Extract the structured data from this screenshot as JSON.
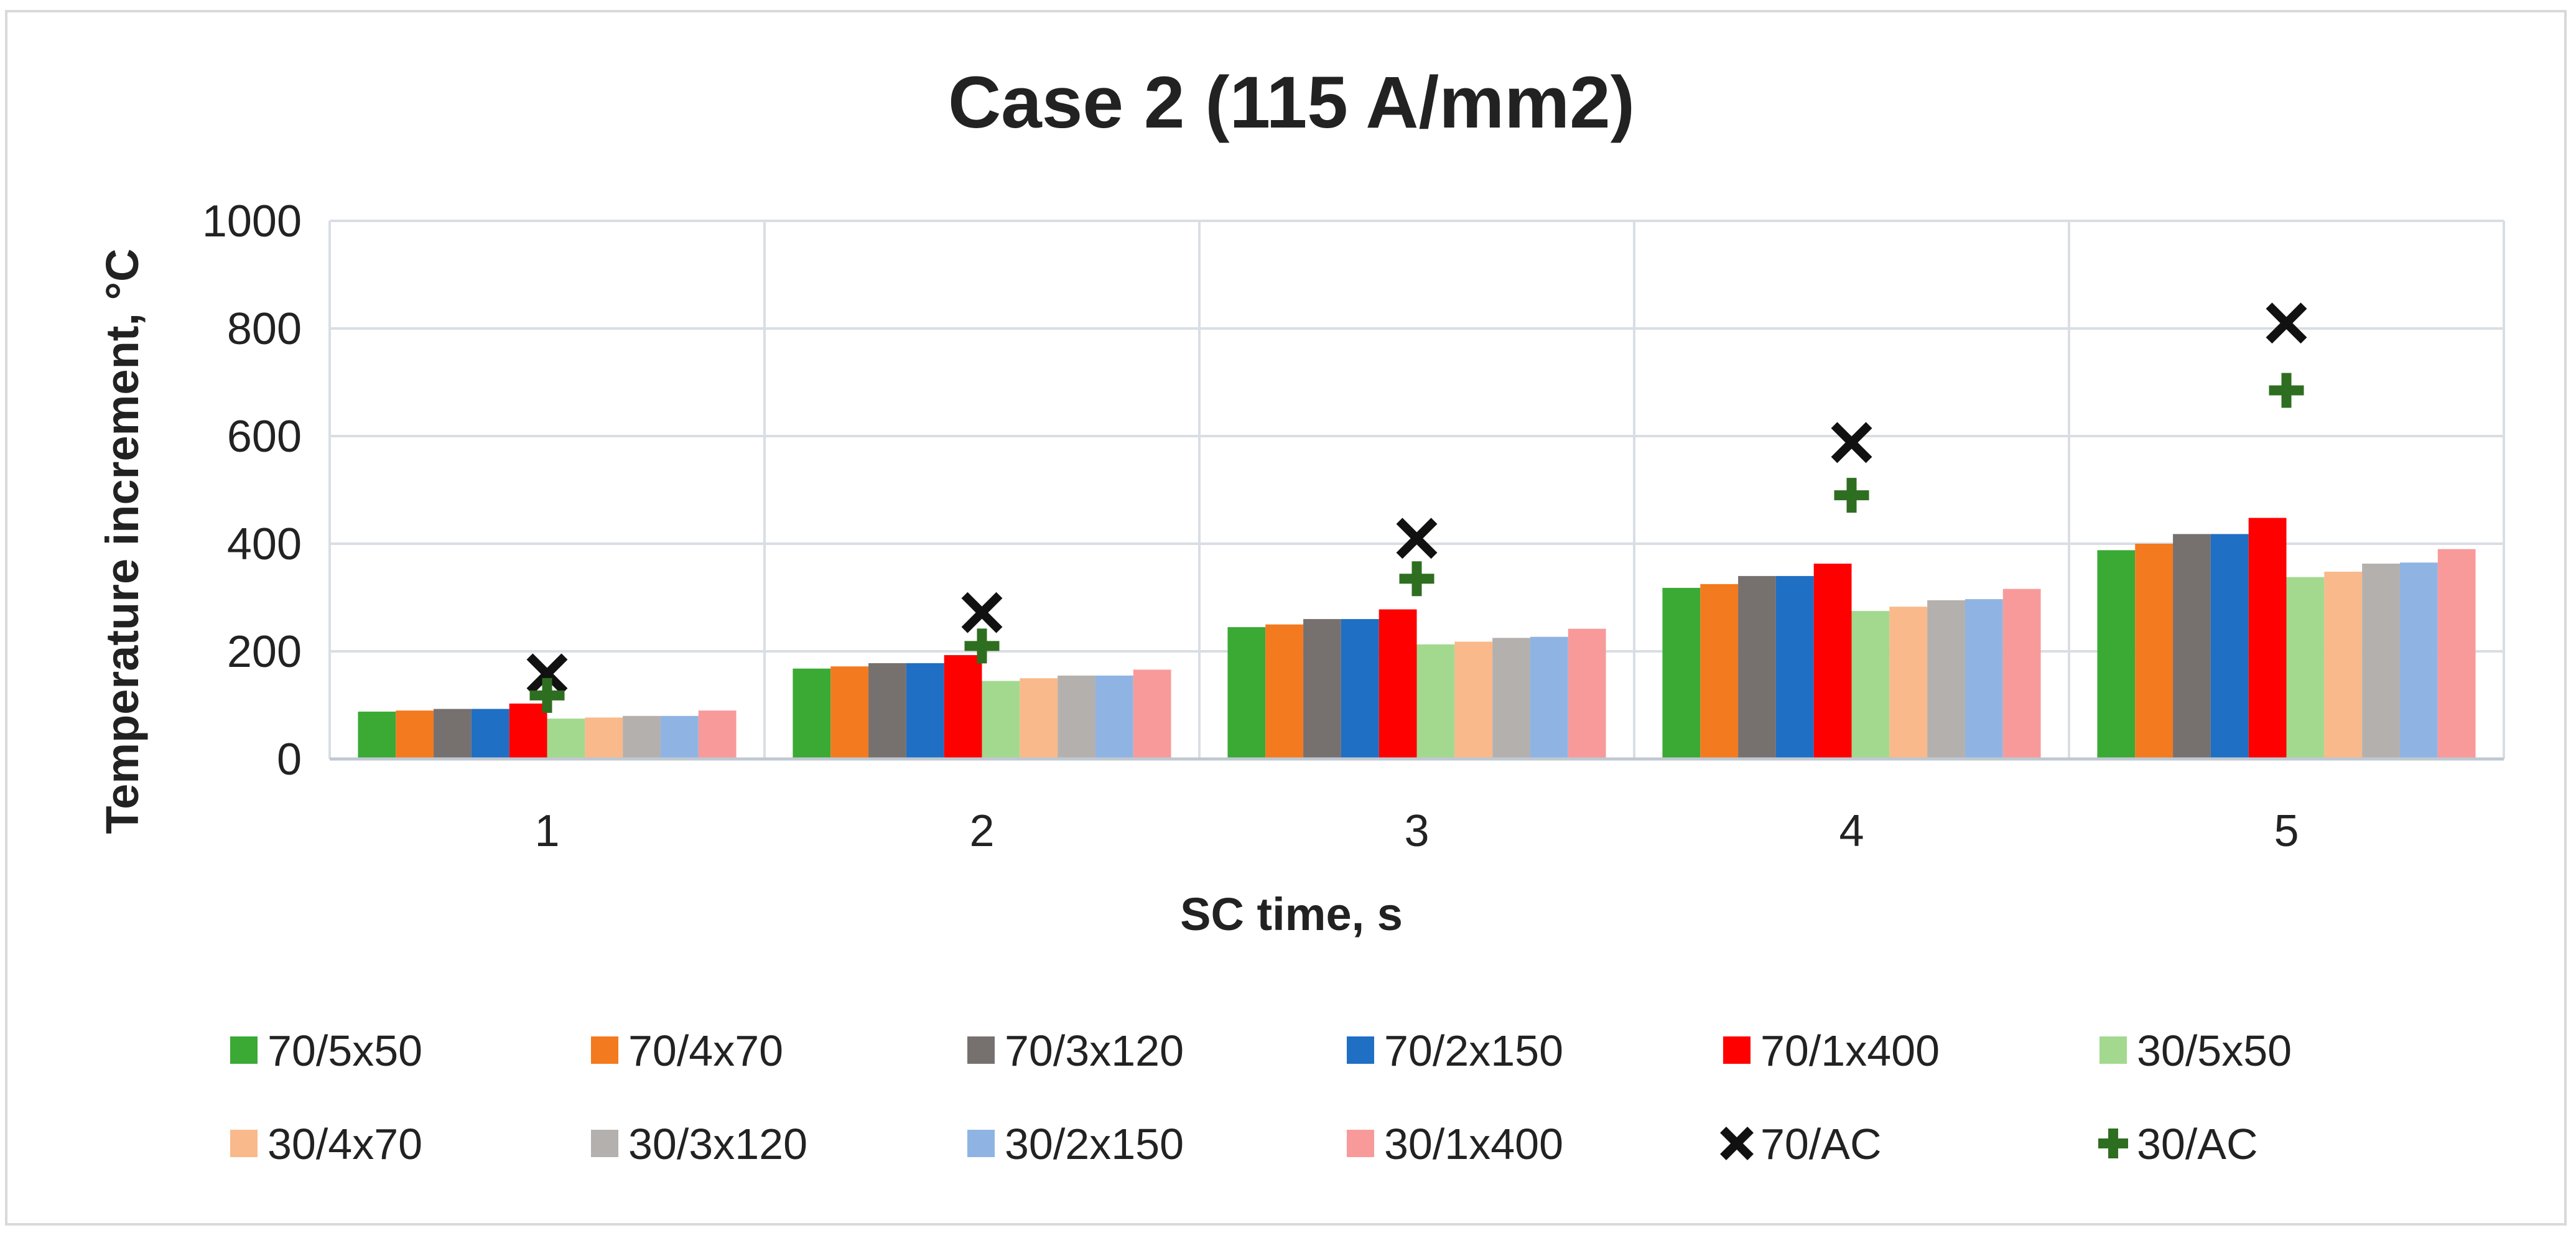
{
  "chart_data": {
    "type": "bar",
    "title": "Case 2 (115 A/mm2)",
    "xlabel": "SC time, s",
    "ylabel": "Temperature increment, °C",
    "ylim": [
      0,
      1000
    ],
    "yticks": [
      0,
      200,
      400,
      600,
      800,
      1000
    ],
    "grid": true,
    "legend_position": "bottom",
    "categories": [
      "1",
      "2",
      "3",
      "4",
      "5"
    ],
    "series": [
      {
        "name": "70/5x50",
        "kind": "bar",
        "color": "#3AAA35",
        "values": [
          88,
          168,
          245,
          318,
          388
        ]
      },
      {
        "name": "70/4x70",
        "kind": "bar",
        "color": "#F37A1F",
        "values": [
          90,
          172,
          250,
          325,
          400
        ]
      },
      {
        "name": "70/3x120",
        "kind": "bar",
        "color": "#76716F",
        "values": [
          93,
          178,
          260,
          340,
          418
        ]
      },
      {
        "name": "70/2x150",
        "kind": "bar",
        "color": "#1F6FC4",
        "values": [
          93,
          178,
          260,
          340,
          418
        ]
      },
      {
        "name": "70/1x400",
        "kind": "bar",
        "color": "#FF0000",
        "values": [
          103,
          193,
          278,
          363,
          448
        ]
      },
      {
        "name": "30/5x50",
        "kind": "bar",
        "color": "#A3D98F",
        "values": [
          75,
          145,
          213,
          275,
          338
        ]
      },
      {
        "name": "30/4x70",
        "kind": "bar",
        "color": "#F9B98A",
        "values": [
          77,
          150,
          218,
          283,
          348
        ]
      },
      {
        "name": "30/3x120",
        "kind": "bar",
        "color": "#B4B0AE",
        "values": [
          80,
          155,
          225,
          295,
          363
        ]
      },
      {
        "name": "30/2x150",
        "kind": "bar",
        "color": "#8FB4E3",
        "values": [
          80,
          155,
          227,
          297,
          365
        ]
      },
      {
        "name": "30/1x400",
        "kind": "bar",
        "color": "#F99A9A",
        "values": [
          90,
          166,
          242,
          316,
          390
        ]
      },
      {
        "name": "70/AC",
        "kind": "marker-x",
        "color": "#111111",
        "values": [
          158,
          272,
          410,
          588,
          810
        ]
      },
      {
        "name": "30/AC",
        "kind": "marker-plus",
        "color": "#2E6E20",
        "values": [
          118,
          210,
          335,
          490,
          685
        ]
      }
    ]
  }
}
